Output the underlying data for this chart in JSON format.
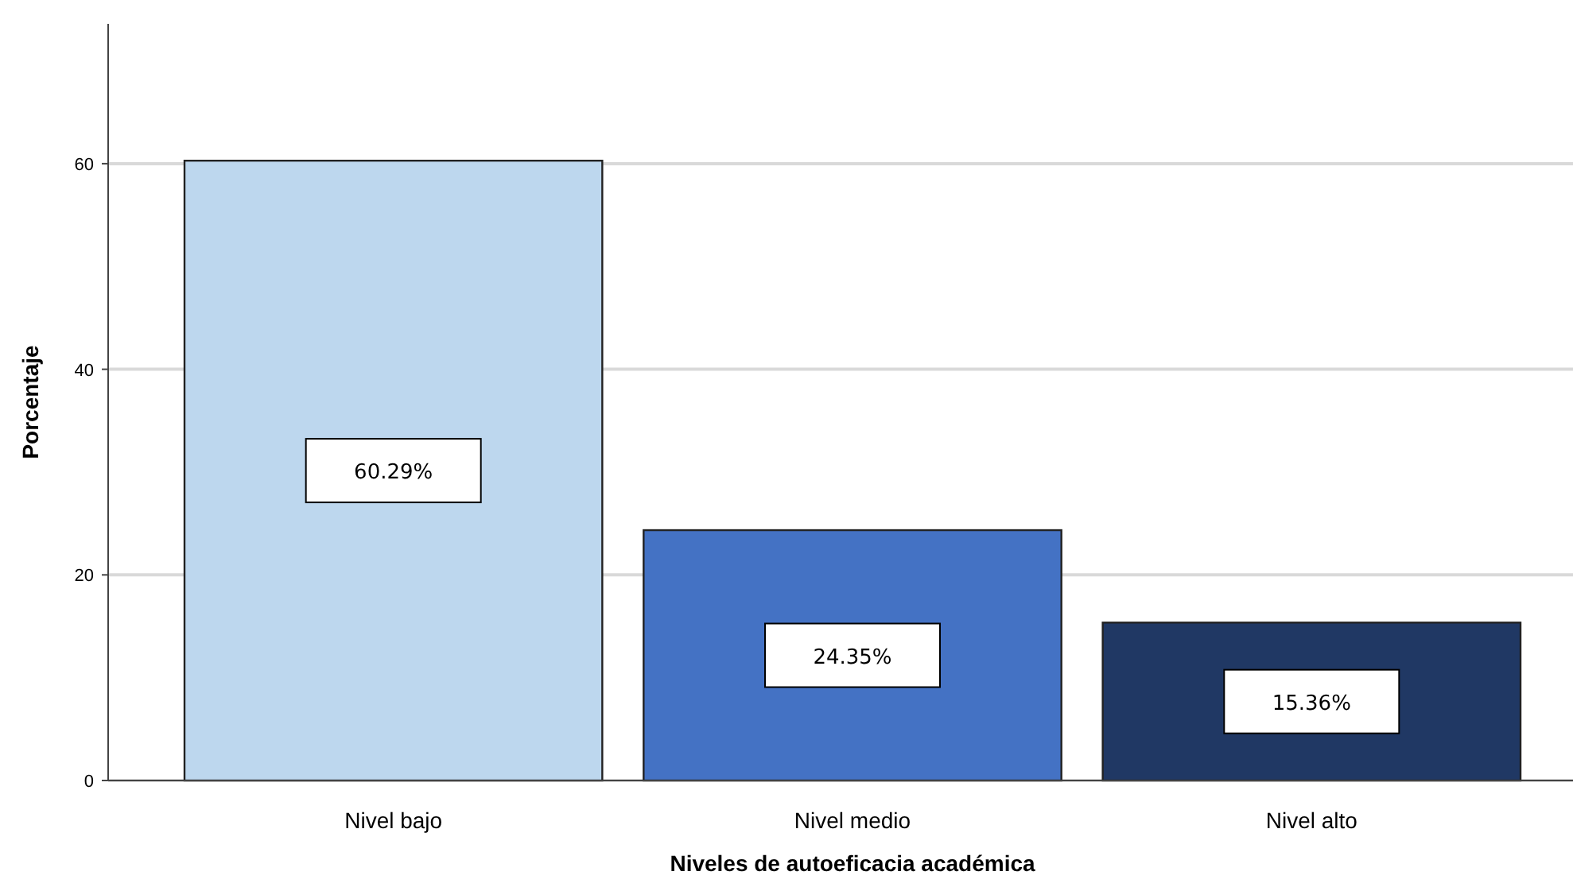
{
  "chart_data": {
    "type": "bar",
    "xlabel": "Niveles de autoeficacia académica",
    "ylabel": "Porcentaje",
    "categories": [
      "Nivel bajo",
      "Nivel medio",
      "Nivel alto"
    ],
    "values": [
      60.29,
      24.35,
      15.36
    ],
    "colors": [
      "#bdd7ee",
      "#4472c4",
      "#203864"
    ],
    "value_labels": [
      "60.29%",
      "24.35%",
      "15.36%"
    ],
    "ylim": [
      0,
      73.6
    ],
    "yticks": [
      0,
      20,
      40,
      60
    ],
    "grid": "y"
  }
}
